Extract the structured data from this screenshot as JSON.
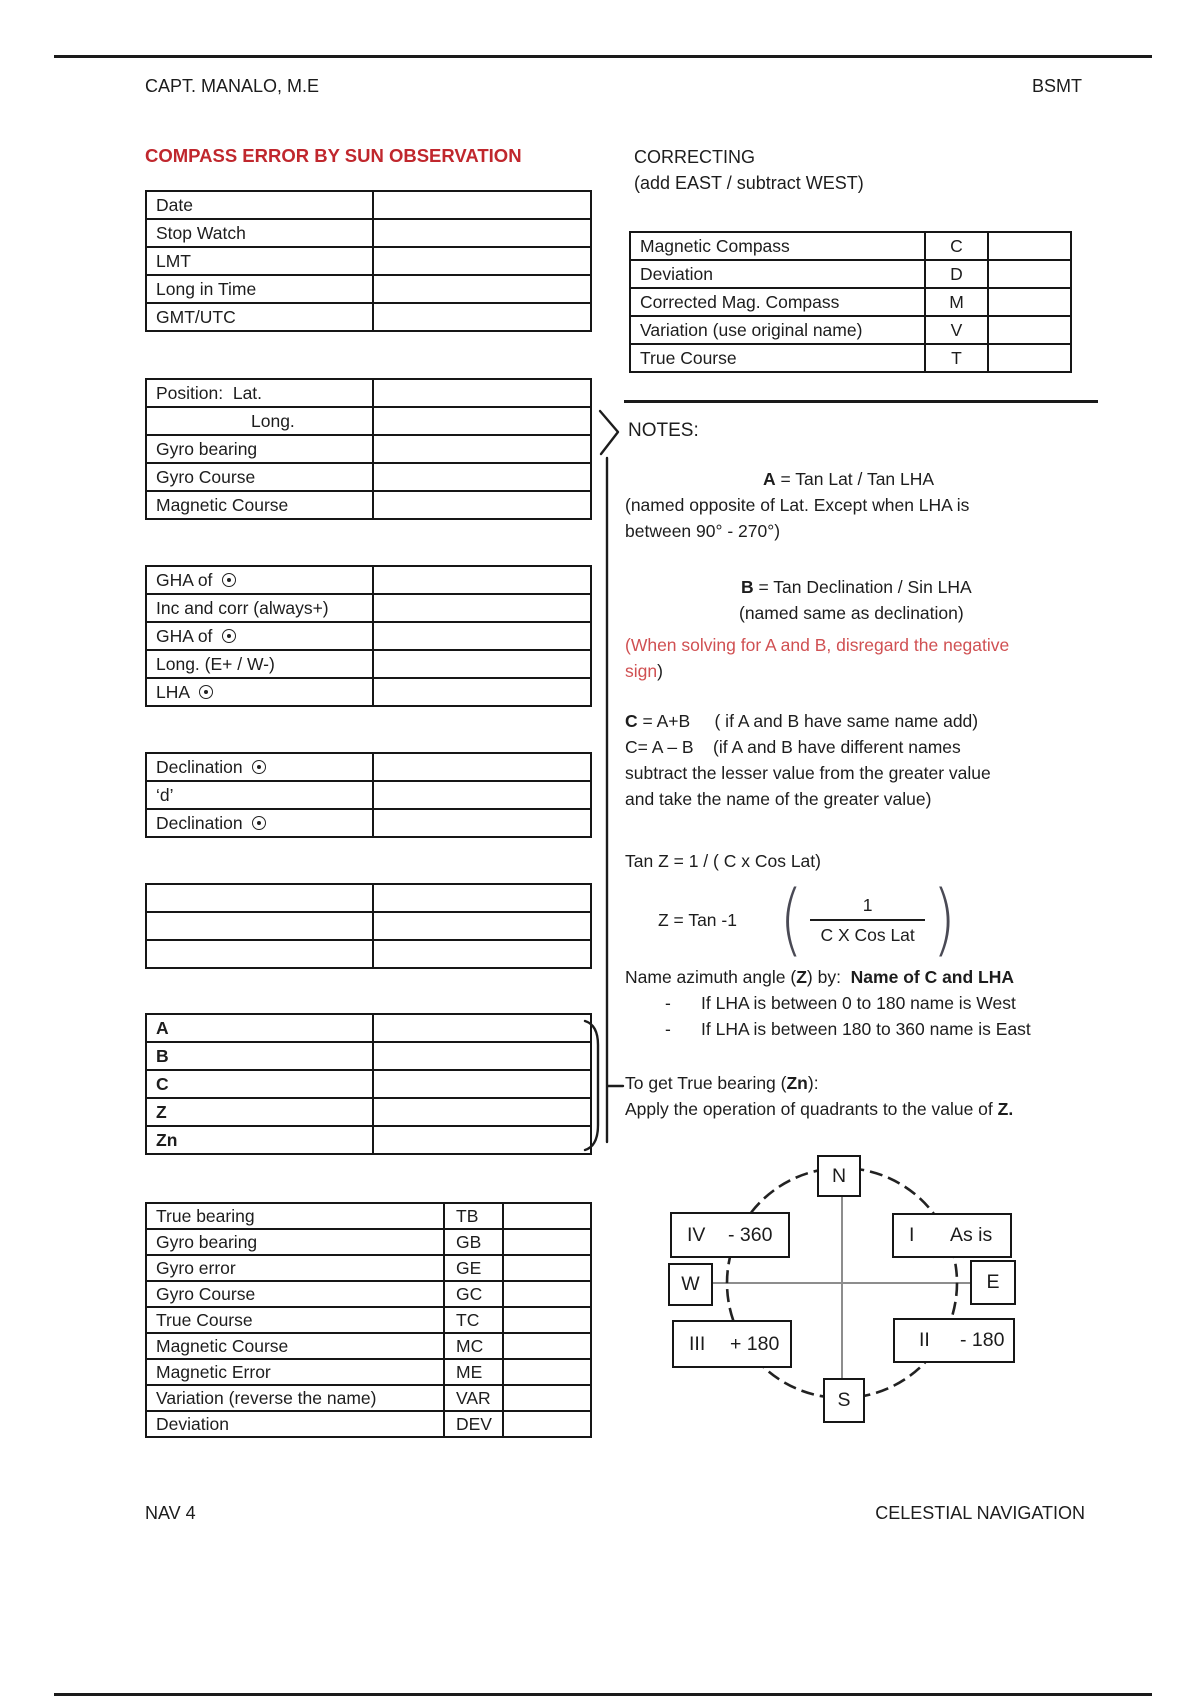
{
  "page": {
    "header_left": "CAPT. MANALO, M.E",
    "header_right": "BSMT",
    "title": "COMPASS ERROR BY SUN OBSERVATION",
    "footer_left": "NAV 4",
    "footer_right": "CELESTIAL NAVIGATION",
    "title_color": "#c0272d",
    "warning_color": "#d05052"
  },
  "correcting": {
    "heading": "CORRECTING",
    "subheading": "(add EAST / subtract WEST)",
    "rows": [
      {
        "label": "Magnetic Compass",
        "letter": "C"
      },
      {
        "label": "Deviation",
        "letter": "D"
      },
      {
        "label": "Corrected Mag. Compass",
        "letter": "M"
      },
      {
        "label": "Variation (use original name)",
        "letter": "V"
      },
      {
        "label": "True Course",
        "letter": "T"
      }
    ]
  },
  "left_tables": [
    {
      "name": "time",
      "rows": [
        {
          "label": "Date"
        },
        {
          "label": "Stop Watch"
        },
        {
          "label": "LMT"
        },
        {
          "label": "Long in Time"
        },
        {
          "label": "GMT/UTC"
        }
      ]
    },
    {
      "name": "position",
      "rows": [
        {
          "label": "Position:  Lat."
        },
        {
          "label": "Long.",
          "indent": true
        },
        {
          "label": "Gyro bearing"
        },
        {
          "label": "Gyro Course"
        },
        {
          "label": "Magnetic Course"
        }
      ]
    },
    {
      "name": "gha",
      "rows": [
        {
          "label": "GHA of ",
          "sun": true
        },
        {
          "label": "Inc and corr (always+)"
        },
        {
          "label": "GHA of ",
          "sun": true
        },
        {
          "label": "Long. (E+ / W-)"
        },
        {
          "label": "LHA ",
          "sun": true
        }
      ]
    },
    {
      "name": "declination",
      "rows": [
        {
          "label": "Declination ",
          "sun": true
        },
        {
          "label": "‘d’"
        },
        {
          "label": "Declination ",
          "sun": true
        }
      ]
    },
    {
      "name": "blank",
      "rows": [
        {
          "label": ""
        },
        {
          "label": ""
        },
        {
          "label": ""
        }
      ]
    },
    {
      "name": "abcz",
      "bold": true,
      "rows": [
        {
          "label": "A"
        },
        {
          "label": "B"
        },
        {
          "label": "C"
        },
        {
          "label": "Z"
        },
        {
          "label": "Zn"
        }
      ]
    }
  ],
  "bearing_table": {
    "rows": [
      {
        "label": "True bearing",
        "abbr": "TB"
      },
      {
        "label": "Gyro bearing",
        "abbr": "GB"
      },
      {
        "label": "Gyro error",
        "abbr": "GE"
      },
      {
        "label": "Gyro Course",
        "abbr": "GC"
      },
      {
        "label": "True Course",
        "abbr": "TC"
      },
      {
        "label": "Magnetic Course",
        "abbr": "MC"
      },
      {
        "label": "Magnetic Error",
        "abbr": "ME"
      },
      {
        "label": "Variation (reverse the name)",
        "abbr": "VAR"
      },
      {
        "label": "Deviation",
        "abbr": "DEV"
      }
    ]
  },
  "notes": {
    "heading": "NOTES:",
    "lines": [
      {
        "cls": "ind-a",
        "segs": [
          {
            "t": "A",
            "b": true
          },
          {
            "t": " = Tan Lat / Tan LHA"
          }
        ]
      },
      {
        "segs": [
          {
            "t": "(named opposite of Lat. Except when LHA is"
          }
        ]
      },
      {
        "segs": [
          {
            "t": "between 90° - 270°)"
          }
        ]
      },
      {
        "cls": "ind-b mt30",
        "segs": [
          {
            "t": "B",
            "b": true
          },
          {
            "t": " = Tan Declination / Sin LHA"
          }
        ]
      },
      {
        "cls": "ind-b2",
        "segs": [
          {
            "t": "(named same as declination)"
          }
        ]
      },
      {
        "cls": "mt6",
        "segs": [
          {
            "t": "(When solving for A and B, disregard the negative",
            "r": true
          }
        ]
      },
      {
        "segs": [
          {
            "t": "sign",
            "r": true
          },
          {
            "t": ")"
          }
        ]
      },
      {
        "cls": "mt24",
        "segs": [
          {
            "t": "C",
            "b": true
          },
          {
            "t": " = A+B     ( if A and B have same name add)"
          }
        ]
      },
      {
        "segs": [
          {
            "t": "C= A – B    (if A and B have different names"
          }
        ]
      },
      {
        "segs": [
          {
            "t": "subtract the lesser value from the greater value"
          }
        ]
      },
      {
        "segs": [
          {
            "t": "and take the name of the greater value)"
          }
        ]
      },
      {
        "cls": "mt36",
        "segs": [
          {
            "t": "Tan Z = 1 / ( C x Cos Lat)"
          }
        ]
      },
      {
        "type": "formula",
        "lhs": "Z = Tan -1",
        "num": "1",
        "den": "C X Cos Lat",
        "open_paren": "(",
        "close_paren": ")"
      },
      {
        "cls": "mt4",
        "segs": [
          {
            "t": "Name azimuth angle ("
          },
          {
            "t": "Z",
            "b": true
          },
          {
            "t": ") by:  "
          },
          {
            "t": "Name of C and LHA",
            "b": true
          }
        ]
      },
      {
        "bullet": true,
        "dash": "-",
        "segs": [
          {
            "t": "If LHA is between 0 to 180 name is West"
          }
        ]
      },
      {
        "bullet": true,
        "dash": "-",
        "segs": [
          {
            "t": "If LHA is between 180 to 360 name is East"
          }
        ]
      },
      {
        "cls": "mt28",
        "segs": [
          {
            "t": "To get True bearing ("
          },
          {
            "t": "Zn",
            "b": true
          },
          {
            "t": "):"
          }
        ]
      },
      {
        "segs": [
          {
            "t": "Apply the operation of quadrants to the value of "
          },
          {
            "t": "Z.",
            "b": true
          }
        ]
      }
    ]
  },
  "diagram": {
    "north": "N",
    "south": "S",
    "east": "E",
    "west": "W",
    "quadrants": [
      {
        "numeral": "IV",
        "op": "- 360",
        "pos": "nw"
      },
      {
        "numeral": "I",
        "op": "As is",
        "pos": "ne"
      },
      {
        "numeral": "III",
        "op": "+ 180",
        "pos": "sw"
      },
      {
        "numeral": "II",
        "op": "- 180",
        "pos": "se"
      }
    ]
  }
}
